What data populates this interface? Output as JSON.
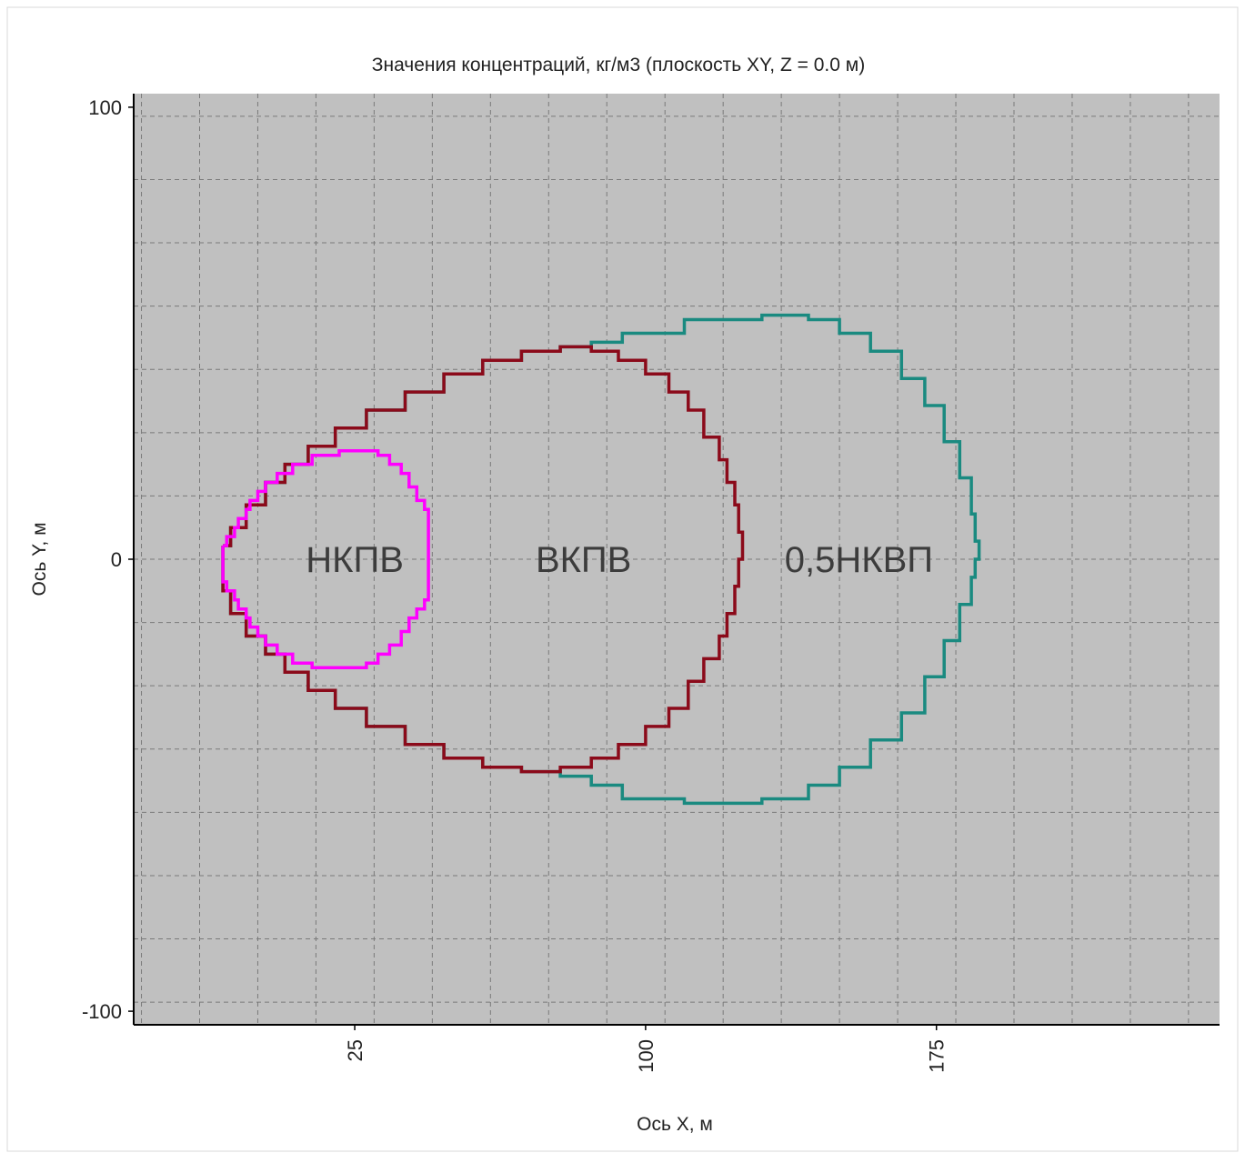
{
  "chart_data": {
    "type": "line",
    "title": "Значения концентраций, кг/м3 (плоскость XY, Z = 0.0 м)",
    "xlabel": "Ось X, м",
    "ylabel": "Ось Y, м",
    "xlim": [
      -32,
      248
    ],
    "ylim": [
      -103,
      103
    ],
    "x_ticks": [
      25,
      100,
      175
    ],
    "y_ticks": [
      100,
      0,
      -100
    ],
    "grid": true,
    "grid_style": "dashed",
    "plot_background": "#c0c0c0",
    "series": [
      {
        "name": "НКПВ",
        "color": "#ff00ff",
        "label_at": [
          25,
          0
        ],
        "points": [
          [
            -9,
            3
          ],
          [
            -8,
            5
          ],
          [
            -6,
            7
          ],
          [
            -5,
            9
          ],
          [
            -3,
            11
          ],
          [
            -2,
            13
          ],
          [
            0,
            15
          ],
          [
            2,
            17
          ],
          [
            5,
            19
          ],
          [
            9,
            21
          ],
          [
            14,
            23
          ],
          [
            21,
            24
          ],
          [
            28,
            24
          ],
          [
            31,
            23
          ],
          [
            34,
            21
          ],
          [
            37,
            19
          ],
          [
            39,
            16
          ],
          [
            41,
            13
          ],
          [
            43,
            11
          ],
          [
            44,
            9
          ],
          [
            44,
            -9
          ],
          [
            43,
            -11
          ],
          [
            41,
            -13
          ],
          [
            39,
            -16
          ],
          [
            37,
            -19
          ],
          [
            34,
            -21
          ],
          [
            31,
            -23
          ],
          [
            28,
            -24
          ],
          [
            21,
            -24
          ],
          [
            14,
            -23
          ],
          [
            9,
            -21
          ],
          [
            5,
            -19
          ],
          [
            2,
            -17
          ],
          [
            0,
            -15
          ],
          [
            -2,
            -13
          ],
          [
            -3,
            -11
          ],
          [
            -5,
            -9
          ],
          [
            -6,
            -7
          ],
          [
            -8,
            -5
          ],
          [
            -9,
            -3
          ],
          [
            -9,
            3
          ]
        ]
      },
      {
        "name": "ВКПВ",
        "color": "#8b0a1a",
        "label_at": [
          84,
          0
        ],
        "points": [
          [
            -9,
            3
          ],
          [
            -7,
            7
          ],
          [
            -3,
            12
          ],
          [
            2,
            17
          ],
          [
            7,
            21
          ],
          [
            13,
            25
          ],
          [
            20,
            29
          ],
          [
            28,
            33
          ],
          [
            38,
            37
          ],
          [
            48,
            41
          ],
          [
            58,
            44
          ],
          [
            68,
            46
          ],
          [
            78,
            47
          ],
          [
            86,
            46
          ],
          [
            93,
            44
          ],
          [
            100,
            41
          ],
          [
            106,
            37
          ],
          [
            111,
            33
          ],
          [
            115,
            27
          ],
          [
            119,
            22
          ],
          [
            121,
            17
          ],
          [
            123,
            12
          ],
          [
            124,
            6
          ],
          [
            125,
            0
          ],
          [
            124,
            -6
          ],
          [
            123,
            -12
          ],
          [
            121,
            -17
          ],
          [
            119,
            -22
          ],
          [
            115,
            -27
          ],
          [
            111,
            -33
          ],
          [
            106,
            -37
          ],
          [
            100,
            -41
          ],
          [
            93,
            -44
          ],
          [
            86,
            -46
          ],
          [
            78,
            -47
          ],
          [
            68,
            -46
          ],
          [
            58,
            -44
          ],
          [
            48,
            -41
          ],
          [
            38,
            -37
          ],
          [
            28,
            -33
          ],
          [
            20,
            -29
          ],
          [
            13,
            -25
          ],
          [
            7,
            -21
          ],
          [
            2,
            -17
          ],
          [
            -3,
            -12
          ],
          [
            -7,
            -7
          ],
          [
            -9,
            -3
          ],
          [
            -9,
            3
          ]
        ]
      },
      {
        "name": "0,5НКВП",
        "color": "#1a8a80",
        "label_at": [
          155,
          0
        ],
        "points": [
          [
            -9,
            3
          ],
          [
            -7,
            7
          ],
          [
            -3,
            12
          ],
          [
            2,
            17
          ],
          [
            7,
            21
          ],
          [
            13,
            25
          ],
          [
            20,
            29
          ],
          [
            28,
            33
          ],
          [
            38,
            37
          ],
          [
            48,
            41
          ],
          [
            58,
            44
          ],
          [
            68,
            46
          ],
          [
            78,
            47
          ],
          [
            86,
            48
          ],
          [
            94,
            50
          ],
          [
            110,
            53
          ],
          [
            130,
            54
          ],
          [
            142,
            53
          ],
          [
            150,
            50
          ],
          [
            158,
            46
          ],
          [
            166,
            40
          ],
          [
            172,
            34
          ],
          [
            177,
            26
          ],
          [
            181,
            18
          ],
          [
            184,
            10
          ],
          [
            185,
            4
          ],
          [
            186,
            0
          ],
          [
            185,
            -4
          ],
          [
            184,
            -10
          ],
          [
            181,
            -18
          ],
          [
            177,
            -26
          ],
          [
            172,
            -34
          ],
          [
            166,
            -40
          ],
          [
            158,
            -46
          ],
          [
            150,
            -50
          ],
          [
            142,
            -53
          ],
          [
            130,
            -54
          ],
          [
            110,
            -53
          ],
          [
            94,
            -50
          ],
          [
            86,
            -48
          ],
          [
            78,
            -47
          ],
          [
            68,
            -46
          ],
          [
            58,
            -44
          ],
          [
            48,
            -41
          ],
          [
            38,
            -37
          ],
          [
            28,
            -33
          ],
          [
            20,
            -29
          ],
          [
            13,
            -25
          ],
          [
            7,
            -21
          ],
          [
            2,
            -17
          ],
          [
            -3,
            -12
          ],
          [
            -7,
            -7
          ],
          [
            -9,
            -3
          ],
          [
            -9,
            3
          ]
        ]
      }
    ]
  }
}
